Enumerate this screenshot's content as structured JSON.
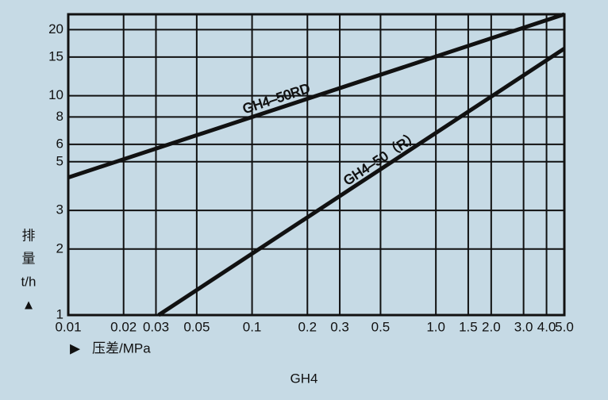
{
  "chart_data": {
    "type": "line",
    "title": "GH4",
    "xlabel": "压差/MPa",
    "ylabel": [
      "排",
      "量",
      "t/h"
    ],
    "log_x": true,
    "log_y": true,
    "grid": true,
    "xlim": [
      0.01,
      5
    ],
    "ylim": [
      1,
      23.5
    ],
    "xticks": [
      0.01,
      0.02,
      0.03,
      0.05,
      0.1,
      0.2,
      0.3,
      0.5,
      {
        "value": 1,
        "label": "1.0"
      },
      1.5,
      {
        "value": 2,
        "label": "2.0"
      },
      {
        "value": 3,
        "label": "3.0"
      },
      {
        "value": 4,
        "label": "4.0"
      },
      {
        "value": 5,
        "label": "5.0"
      }
    ],
    "yticks": [
      1,
      2,
      3,
      5,
      6,
      8,
      10,
      15,
      20
    ],
    "series": [
      {
        "name": "GH4–50RD",
        "color": "#111111",
        "x": [
          0.01,
          5
        ],
        "values": [
          4.24,
          23.5
        ]
      },
      {
        "name": "GH4–50（R）",
        "color": "#111111",
        "x": [
          0.031,
          5
        ],
        "values": [
          1,
          16.4
        ]
      }
    ]
  }
}
